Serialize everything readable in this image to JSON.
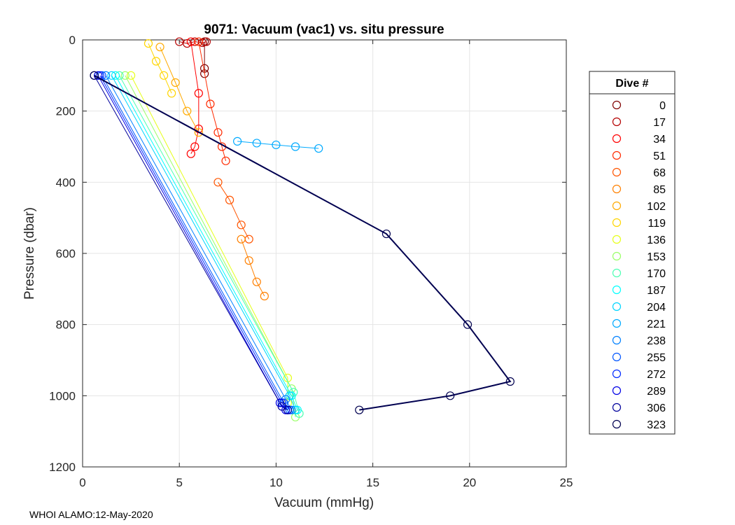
{
  "footer": "WHOI ALAMO:12-May-2020",
  "chart_data": {
    "type": "scatter",
    "title": "9071: Vacuum (vac1) vs. situ pressure",
    "xlabel": "Vacuum (mmHg)",
    "ylabel": "Pressure (dbar)",
    "xlim": [
      0,
      25
    ],
    "ylim": [
      0,
      1200
    ],
    "y_reversed": true,
    "grid": true,
    "xticks": [
      "0",
      "5",
      "10",
      "15",
      "20",
      "25"
    ],
    "yticks": [
      "0",
      "200",
      "400",
      "600",
      "800",
      "1000",
      "1200"
    ],
    "legend_title": "Dive #",
    "legend_position": "outside-right",
    "series": [
      {
        "name": "0",
        "color": "#800000",
        "vacuum": [
          6.3,
          6.3,
          6.3
        ],
        "pressure": [
          5,
          80,
          95
        ]
      },
      {
        "name": "17",
        "color": "#b40000",
        "vacuum": [
          5.0,
          5.4,
          5.8,
          6.2,
          6.4
        ],
        "pressure": [
          5,
          10,
          5,
          8,
          5
        ]
      },
      {
        "name": "34",
        "color": "#ff0000",
        "vacuum": [
          5.6,
          6.0,
          6.0,
          5.8,
          5.6
        ],
        "pressure": [
          5,
          150,
          250,
          300,
          320
        ]
      },
      {
        "name": "51",
        "color": "#ff2a00",
        "vacuum": [
          6.0,
          6.6,
          7.0,
          7.4,
          7.2
        ],
        "pressure": [
          5,
          180,
          260,
          340,
          300
        ]
      },
      {
        "name": "68",
        "color": "#ff5500",
        "vacuum": [
          7.0,
          7.6,
          8.2,
          8.6
        ],
        "pressure": [
          400,
          450,
          520,
          560
        ]
      },
      {
        "name": "85",
        "color": "#ff8000",
        "vacuum": [
          8.2,
          8.6,
          9.0,
          9.4
        ],
        "pressure": [
          560,
          620,
          680,
          720
        ]
      },
      {
        "name": "102",
        "color": "#ffaa00",
        "vacuum": [
          4.0,
          4.8,
          5.4,
          6.0
        ],
        "pressure": [
          20,
          120,
          200,
          260
        ]
      },
      {
        "name": "119",
        "color": "#ffd500",
        "vacuum": [
          3.4,
          3.8,
          4.2,
          4.6
        ],
        "pressure": [
          10,
          60,
          100,
          150
        ]
      },
      {
        "name": "136",
        "color": "#e6ff19",
        "vacuum": [
          2.5,
          10.6,
          10.6
        ],
        "pressure": [
          100,
          950,
          1020
        ]
      },
      {
        "name": "153",
        "color": "#99ff66",
        "vacuum": [
          2.2,
          10.8,
          11.0
        ],
        "pressure": [
          100,
          980,
          1060
        ]
      },
      {
        "name": "170",
        "color": "#4dffb3",
        "vacuum": [
          1.9,
          10.9,
          11.2
        ],
        "pressure": [
          100,
          990,
          1050
        ]
      },
      {
        "name": "187",
        "color": "#00ffff",
        "vacuum": [
          1.7,
          10.8,
          11.1
        ],
        "pressure": [
          100,
          1000,
          1040
        ]
      },
      {
        "name": "204",
        "color": "#00d5ff",
        "vacuum": [
          1.5,
          10.7,
          11.0
        ],
        "pressure": [
          100,
          1000,
          1040
        ]
      },
      {
        "name": "221",
        "color": "#00aaff",
        "vacuum": [
          8.0,
          9.0,
          10.0,
          11.0,
          12.2
        ],
        "pressure": [
          285,
          290,
          295,
          300,
          305
        ]
      },
      {
        "name": "238",
        "color": "#0080ff",
        "vacuum": [
          1.2,
          10.5,
          10.8
        ],
        "pressure": [
          100,
          1010,
          1040
        ]
      },
      {
        "name": "255",
        "color": "#0055ff",
        "vacuum": [
          1.0,
          10.4,
          10.7
        ],
        "pressure": [
          100,
          1020,
          1040
        ]
      },
      {
        "name": "272",
        "color": "#002aff",
        "vacuum": [
          0.9,
          10.3,
          10.6
        ],
        "pressure": [
          100,
          1020,
          1040
        ]
      },
      {
        "name": "289",
        "color": "#0000e6",
        "vacuum": [
          0.8,
          10.2,
          10.5
        ],
        "pressure": [
          100,
          1020,
          1040
        ]
      },
      {
        "name": "306",
        "color": "#00009c",
        "vacuum": [
          0.6,
          10.3,
          10.6
        ],
        "pressure": [
          100,
          1030,
          1040
        ]
      },
      {
        "name": "323",
        "color": "#000050",
        "vacuum": [
          0.6,
          15.7,
          19.9,
          22.1,
          19.0,
          14.3
        ],
        "pressure": [
          100,
          545,
          800,
          960,
          1000,
          1040
        ]
      }
    ]
  }
}
